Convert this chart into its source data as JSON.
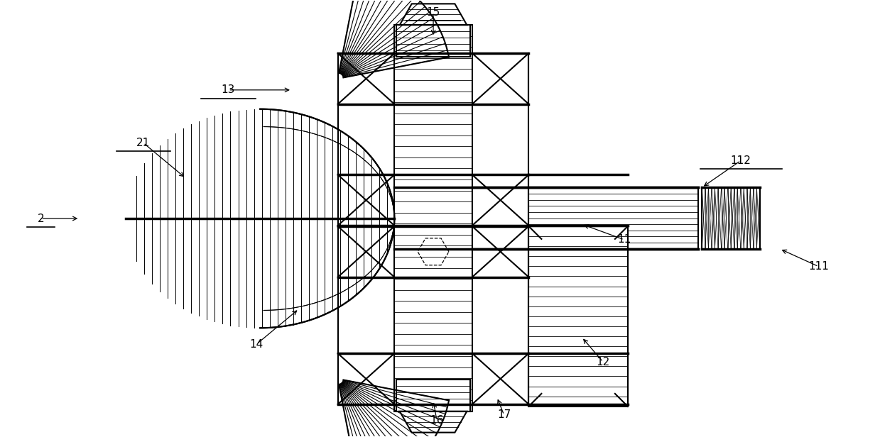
{
  "bg_color": "#ffffff",
  "line_color": "#000000",
  "line_width": 1.5,
  "thick_line": 2.5,
  "fig_width": 12.39,
  "fig_height": 6.16
}
